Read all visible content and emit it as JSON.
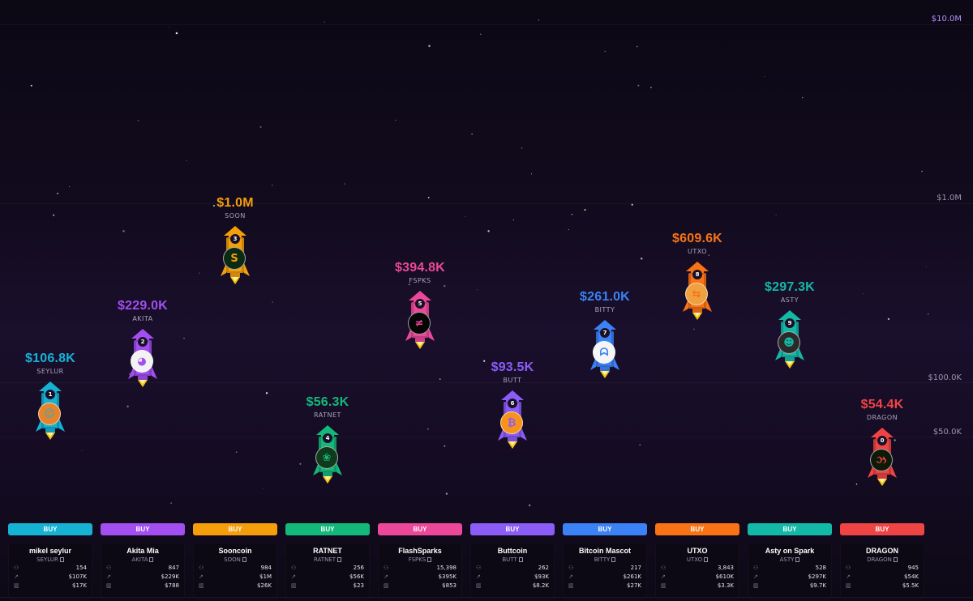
{
  "axis": {
    "labels": [
      "$10.0M",
      "$1.0M",
      "$100.0K",
      "$50.0K"
    ]
  },
  "buy_label": "BUY",
  "icons": {
    "holders": "users-icon",
    "mcap": "trend-up-icon",
    "volume": "bar-chart-icon",
    "doc": "document-icon"
  },
  "tokens": [
    {
      "rank": "1",
      "mcap": "$106.8K",
      "ticker": "SEYLUR",
      "name": "mikel seylur",
      "holders": "154",
      "market_cap": "$107K",
      "volume": "$17K",
      "color": "#16b2d4",
      "avatar_glyph": "☺",
      "avatar_bg": "#e8822b"
    },
    {
      "rank": "2",
      "mcap": "$229.0K",
      "ticker": "AKITA",
      "name": "Akita Mia",
      "holders": "847",
      "market_cap": "$229K",
      "volume": "$788",
      "color": "#a24ef0",
      "avatar_glyph": "◕",
      "avatar_bg": "#f2f2f2"
    },
    {
      "rank": "3",
      "mcap": "$1.0M",
      "ticker": "SOON",
      "name": "Sooncoin",
      "holders": "984",
      "market_cap": "$1M",
      "volume": "$26K",
      "color": "#f59e0b",
      "avatar_glyph": "S",
      "avatar_bg": "#0c2a12"
    },
    {
      "rank": "4",
      "mcap": "$56.3K",
      "ticker": "RATNET",
      "name": "RATNET",
      "holders": "256",
      "market_cap": "$56K",
      "volume": "$23",
      "color": "#14b87a",
      "avatar_glyph": "❀",
      "avatar_bg": "#0f3a1c"
    },
    {
      "rank": "5",
      "mcap": "$394.8K",
      "ticker": "FSPKS",
      "name": "FlashSparks",
      "holders": "15,398",
      "market_cap": "$395K",
      "volume": "$853",
      "color": "#ec4899",
      "avatar_glyph": "≠",
      "avatar_bg": "#050505"
    },
    {
      "rank": "6",
      "mcap": "$93.5K",
      "ticker": "BUTT",
      "name": "Buttcoin",
      "holders": "262",
      "market_cap": "$93K",
      "volume": "$8.2K",
      "color": "#8b5cf6",
      "avatar_glyph": "₿",
      "avatar_bg": "#f7931a"
    },
    {
      "rank": "7",
      "mcap": "$261.0K",
      "ticker": "BITTY",
      "name": "Bitcoin Mascot",
      "holders": "217",
      "market_cap": "$261K",
      "volume": "$27K",
      "color": "#3b82f6",
      "avatar_glyph": "ᗣ",
      "avatar_bg": "#f5f5f5"
    },
    {
      "rank": "8",
      "mcap": "$609.6K",
      "ticker": "UTXO",
      "name": "UTXO",
      "holders": "3,843",
      "market_cap": "$610K",
      "volume": "$3.3K",
      "color": "#f97316",
      "avatar_glyph": "⇆",
      "avatar_bg": "#f0a040"
    },
    {
      "rank": "9",
      "mcap": "$297.3K",
      "ticker": "ASTY",
      "name": "Asty on Spark",
      "holders": "528",
      "market_cap": "$297K",
      "volume": "$9.7K",
      "color": "#14b8a6",
      "avatar_glyph": "☻",
      "avatar_bg": "#2a2a2a"
    },
    {
      "rank": "0",
      "mcap": "$54.4K",
      "ticker": "DRAGON",
      "name": "DRAGON",
      "holders": "945",
      "market_cap": "$54K",
      "volume": "$5.5K",
      "color": "#ef4444",
      "avatar_glyph": "ઝ",
      "avatar_bg": "#0d1a08"
    }
  ]
}
